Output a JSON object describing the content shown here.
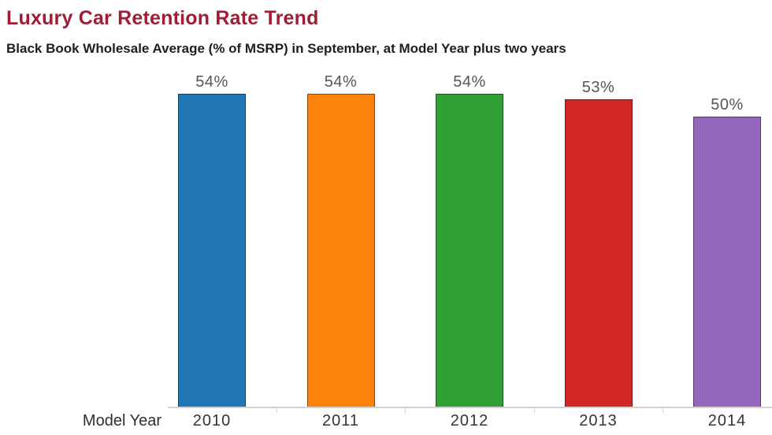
{
  "header": {
    "title": "Luxury Car Retention Rate Trend",
    "subtitle": "Black Book Wholesale Average (% of MSRP) in September, at Model Year plus two years"
  },
  "colors": {
    "title_text": "#9F1D35",
    "subtitle_text": "#1F1F1F",
    "axis_line": "#D2D2D2",
    "bar_label_text": "#565656",
    "tick_label_text": "#343434",
    "axis_title_text": "#2F2F2F",
    "bar_border": "rgba(0,0,0,0.45)"
  },
  "chart_data": {
    "type": "bar",
    "title": "Luxury Car Retention Rate Trend",
    "subtitle": "Black Book Wholesale Average (% of MSRP) in September, at Model Year plus two years",
    "categories": [
      "2010",
      "2011",
      "2012",
      "2013",
      "2014"
    ],
    "values": [
      54,
      54,
      54,
      53,
      50
    ],
    "data_labels": [
      "54%",
      "54%",
      "54%",
      "53%",
      "50%"
    ],
    "series_colors": [
      "#2176B5",
      "#FD810D",
      "#30A035",
      "#D22726",
      "#9467BD"
    ],
    "xlabel": "Model Year",
    "ylabel": "",
    "ylim": [
      0,
      57
    ],
    "grid": false,
    "legend": false,
    "bar_labels_position": "above",
    "y_axis_visible": false
  }
}
